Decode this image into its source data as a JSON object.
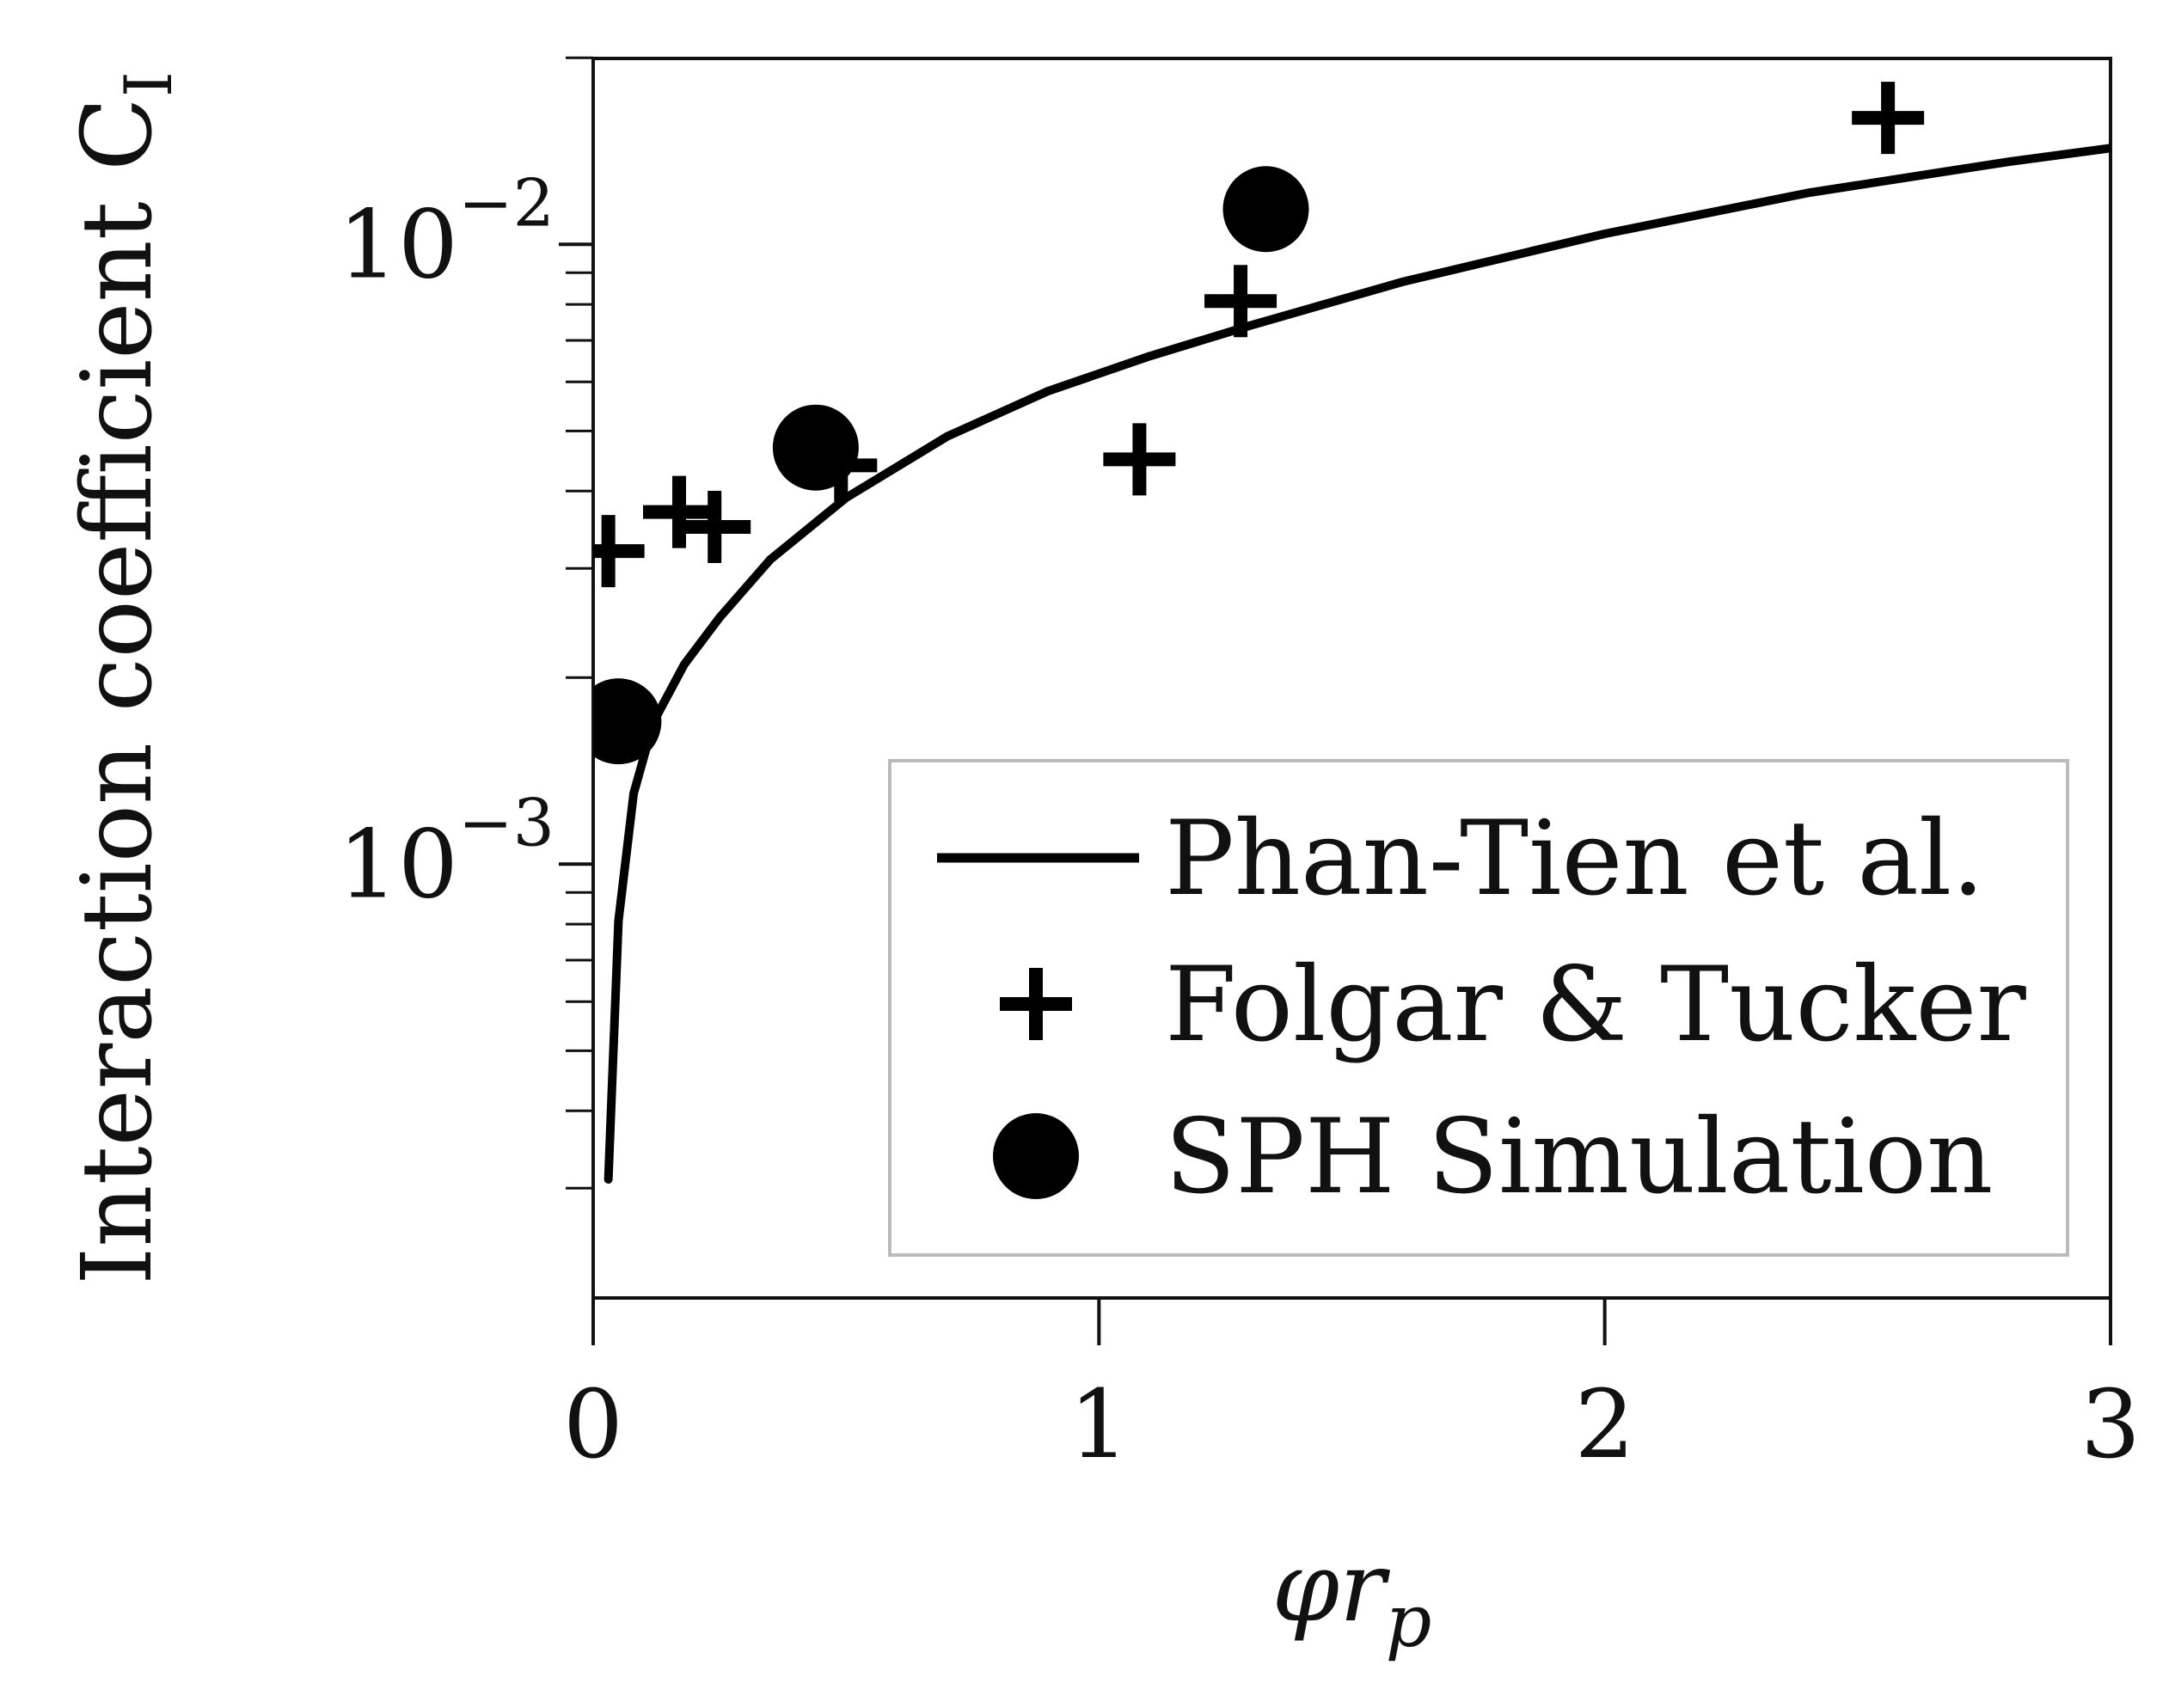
{
  "chart_data": {
    "type": "scatter",
    "xlabel_main": "φr",
    "xlabel_sub": "p",
    "ylabel_main": "Interaction coefficient C",
    "ylabel_sub": "I",
    "xlim": [
      0,
      3
    ],
    "ylim_log10": [
      -3.7,
      -1.7
    ],
    "yscale": "log",
    "grid": false,
    "legend_position": "bottom-right",
    "x_ticks": [
      {
        "value": 0,
        "label": "0"
      },
      {
        "value": 1,
        "label": "1"
      },
      {
        "value": 2,
        "label": "2"
      },
      {
        "value": 3,
        "label": "3"
      }
    ],
    "y_major_ticks": [
      {
        "value": 0.001,
        "base": "10",
        "exp": "−3"
      },
      {
        "value": 0.01,
        "base": "10",
        "exp": "−2"
      }
    ],
    "y_minor_ticks": [
      0.0003,
      0.0004,
      0.0005,
      0.0006,
      0.0007,
      0.0008,
      0.0009,
      0.002,
      0.003,
      0.004,
      0.005,
      0.006,
      0.007,
      0.008,
      0.009,
      0.02
    ],
    "series": [
      {
        "name": "Phan-Tien et al.",
        "marker": "line",
        "x": [
          0.03,
          0.05,
          0.08,
          0.12,
          0.18,
          0.25,
          0.35,
          0.5,
          0.7,
          0.9,
          1.1,
          1.3,
          1.6,
          2.0,
          2.4,
          2.8,
          3.0
        ],
        "y": [
          0.00031,
          0.00081,
          0.0013,
          0.0017,
          0.0021,
          0.0025,
          0.0031,
          0.0039,
          0.0049,
          0.0058,
          0.0066,
          0.0074,
          0.0087,
          0.0104,
          0.0121,
          0.0136,
          0.0143
        ]
      },
      {
        "name": "Folgar & Tucker",
        "marker": "plus",
        "x": [
          0.03,
          0.17,
          0.24,
          0.49,
          1.08,
          1.28,
          2.56
        ],
        "y": [
          0.0032,
          0.0037,
          0.0035,
          0.0044,
          0.0045,
          0.0081,
          0.016
        ]
      },
      {
        "name": "SPH Simulation",
        "marker": "circle",
        "x": [
          0.05,
          0.44,
          1.33
        ],
        "y": [
          0.0017,
          0.0047,
          0.0114
        ]
      }
    ]
  }
}
